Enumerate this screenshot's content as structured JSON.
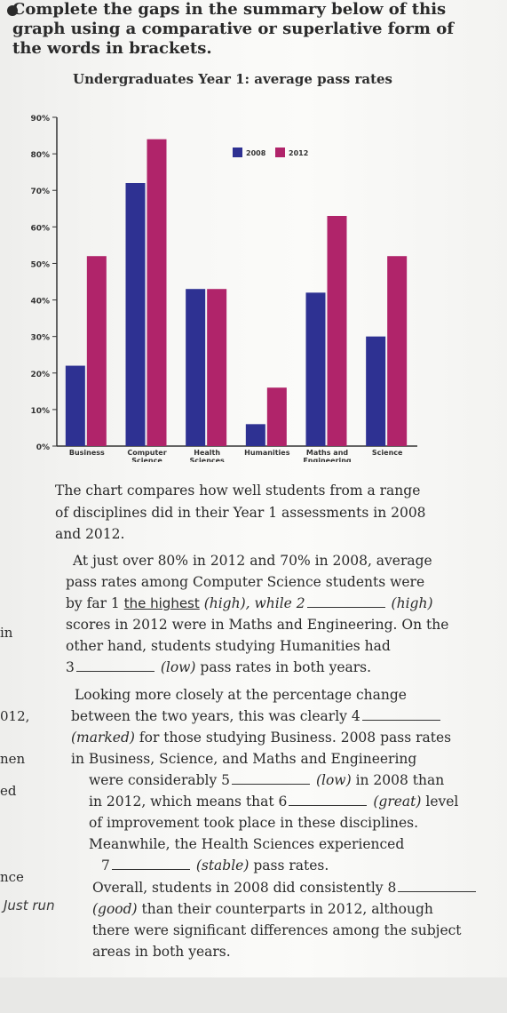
{
  "instructions": {
    "line1": "Complete the gaps in the summary below of this",
    "line2": "graph using a comparative or superlative form of",
    "line3": "the words in brackets."
  },
  "chart_data": {
    "type": "bar",
    "title": "Undergraduates Year 1: average pass rates",
    "categories": [
      "Business",
      "Computer Science",
      "Health Sciences",
      "Humanities",
      "Maths and Engineering",
      "Science"
    ],
    "category_labels": [
      [
        "Business"
      ],
      [
        "Computer",
        "Science"
      ],
      [
        "Health",
        "Sciences"
      ],
      [
        "Humanities"
      ],
      [
        "Maths and",
        "Engineering"
      ],
      [
        "Science"
      ]
    ],
    "series": [
      {
        "name": "2008",
        "values": [
          22,
          72,
          43,
          6,
          42,
          30
        ],
        "color": "#2e3192"
      },
      {
        "name": "2012",
        "values": [
          52,
          84,
          43,
          16,
          63,
          52
        ],
        "color": "#b0246a"
      }
    ],
    "ylim": [
      0,
      90
    ],
    "y_ticks": [
      "0%",
      "10%",
      "20%",
      "30%",
      "40%",
      "50%",
      "60%",
      "70%",
      "80%",
      "90%"
    ],
    "legend_position": "top-right"
  },
  "summary": {
    "l1": "The chart compares how well students from a range",
    "l2": "of disciplines did in their Year 1 assessments in 2008",
    "l3": "and 2012.",
    "l4": "At just over 80% in 2012 and 70% in 2008, average",
    "l5": "pass rates among Computer Science students were",
    "l6a": "by far 1",
    "l6_answer": "the highest",
    "l6b": "(high), while 2",
    "l6c": "(high)",
    "l7": "scores in 2012 were in Maths and Engineering. On the",
    "l8": "other hand, students studying Humanities had",
    "l9a": "3",
    "l9b": "(low)",
    "l9c": "pass rates in both years.",
    "l10": "Looking more closely at the percentage change",
    "l11a": "between the two years, this was clearly 4",
    "l12a": "(marked)",
    "l12b": "for those studying Business. 2008 pass rates",
    "l13": "in Business, Science, and Maths and Engineering",
    "l14a": "were considerably 5",
    "l14b": "(low)",
    "l14c": "in 2008 than",
    "l15a": "in 2012, which means that 6",
    "l15b": "(great)",
    "l15c": "level",
    "l16": "of improvement took place in these disciplines.",
    "l17": "Meanwhile, the Health Sciences experienced",
    "l18a": "7",
    "l18b": "(stable)",
    "l18c": "pass rates.",
    "l19a": "Overall, students in 2008 did consistently 8",
    "l20a": "(good)",
    "l20b": "than their counterparts in 2012, although",
    "l21": "there were significant differences among the subject",
    "l22": "areas in both years."
  },
  "margin_notes": {
    "in": "in",
    "year": "012,",
    "then": "nen",
    "ed": "ed",
    "nce": "nce",
    "scribble": "Just run"
  }
}
